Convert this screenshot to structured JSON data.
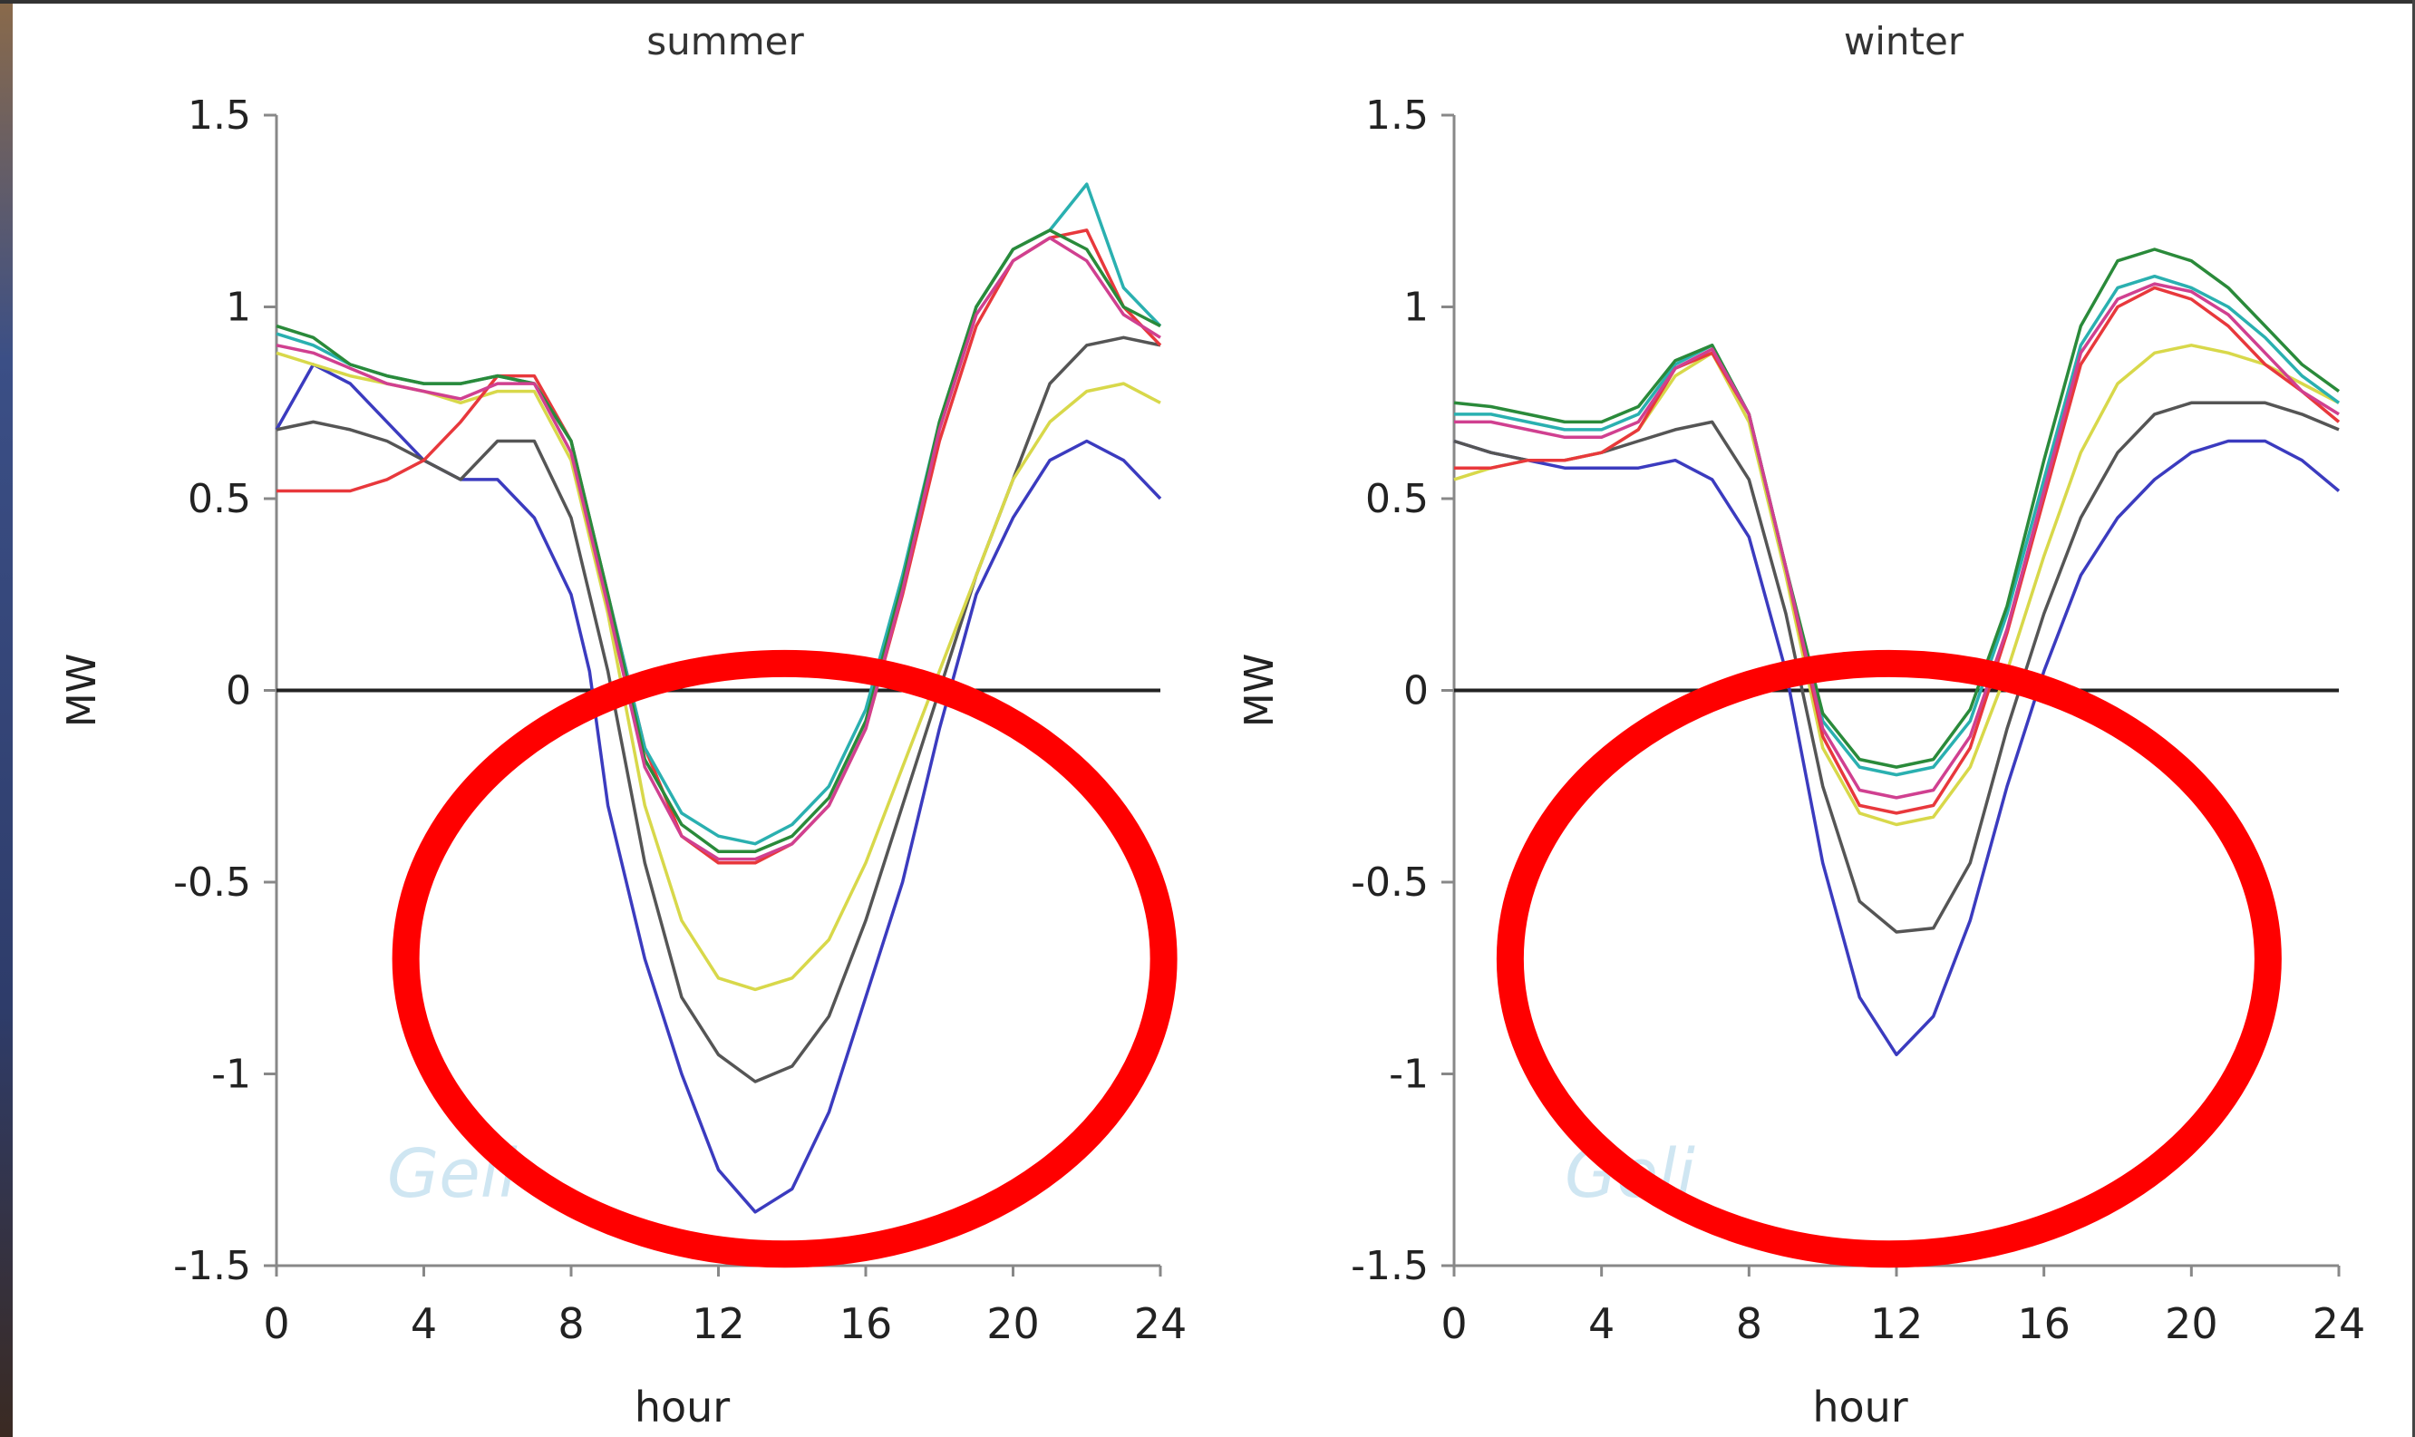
{
  "chart_data": [
    {
      "type": "line",
      "title": "summer",
      "xlabel": "hour",
      "ylabel": "MW",
      "xlim": [
        0,
        24
      ],
      "ylim": [
        -1.5,
        1.5
      ],
      "xticks": [
        "0",
        "4",
        "8",
        "12",
        "16",
        "20",
        "24"
      ],
      "yticks": [
        "1.5",
        "1",
        "0.5",
        "0",
        "-0.5",
        "-1",
        "-1.5"
      ],
      "watermark": "Geli",
      "highlight": {
        "shape": "ellipse",
        "color": "#ff0000",
        "center": [
          13.8,
          -0.7
        ],
        "radius_x_hours": 10.3,
        "radius_y_mw": 0.77
      },
      "series": [
        {
          "color": "#3b3bbf",
          "x": [
            0,
            1,
            2,
            3,
            4,
            5,
            6,
            7,
            8,
            8.5,
            9,
            10,
            11,
            12,
            13,
            14,
            15,
            16,
            17,
            18,
            19,
            20,
            21,
            22,
            23,
            24
          ],
          "y": [
            0.68,
            0.85,
            0.8,
            0.7,
            0.6,
            0.55,
            0.55,
            0.45,
            0.25,
            0.05,
            -0.3,
            -0.7,
            -1.0,
            -1.25,
            -1.36,
            -1.3,
            -1.1,
            -0.8,
            -0.5,
            -0.1,
            0.25,
            0.45,
            0.6,
            0.65,
            0.6,
            0.5
          ]
        },
        {
          "color": "#555555",
          "x": [
            0,
            1,
            2,
            3,
            4,
            5,
            6,
            7,
            8,
            9,
            10,
            11,
            12,
            13,
            14,
            15,
            16,
            17,
            18,
            19,
            20,
            21,
            22,
            23,
            24
          ],
          "y": [
            0.68,
            0.7,
            0.68,
            0.65,
            0.6,
            0.55,
            0.65,
            0.65,
            0.45,
            0.05,
            -0.45,
            -0.8,
            -0.95,
            -1.02,
            -0.98,
            -0.85,
            -0.6,
            -0.3,
            0.0,
            0.3,
            0.55,
            0.8,
            0.9,
            0.92,
            0.9
          ]
        },
        {
          "color": "#d8d84a",
          "x": [
            0,
            1,
            2,
            3,
            4,
            5,
            6,
            7,
            8,
            9,
            10,
            11,
            12,
            13,
            14,
            15,
            16,
            17,
            18,
            19,
            20,
            21,
            22,
            23,
            24
          ],
          "y": [
            0.88,
            0.85,
            0.82,
            0.8,
            0.78,
            0.75,
            0.78,
            0.78,
            0.6,
            0.2,
            -0.3,
            -0.6,
            -0.75,
            -0.78,
            -0.75,
            -0.65,
            -0.45,
            -0.2,
            0.05,
            0.3,
            0.55,
            0.7,
            0.78,
            0.8,
            0.75
          ]
        },
        {
          "color": "#e8383c",
          "x": [
            0,
            1,
            2,
            3,
            4,
            5,
            6,
            7,
            8,
            9,
            10,
            11,
            12,
            13,
            14,
            15,
            16,
            17,
            18,
            19,
            20,
            21,
            22,
            23,
            24
          ],
          "y": [
            0.52,
            0.52,
            0.52,
            0.55,
            0.6,
            0.7,
            0.82,
            0.82,
            0.65,
            0.25,
            -0.15,
            -0.38,
            -0.45,
            -0.45,
            -0.4,
            -0.3,
            -0.1,
            0.25,
            0.65,
            0.95,
            1.12,
            1.18,
            1.2,
            1.0,
            0.9
          ]
        },
        {
          "color": "#2ab0b0",
          "x": [
            0,
            1,
            2,
            3,
            4,
            5,
            6,
            7,
            8,
            9,
            10,
            11,
            12,
            13,
            14,
            15,
            16,
            17,
            18,
            19,
            20,
            21,
            22,
            23,
            24
          ],
          "y": [
            0.93,
            0.9,
            0.85,
            0.82,
            0.8,
            0.8,
            0.82,
            0.8,
            0.65,
            0.25,
            -0.15,
            -0.32,
            -0.38,
            -0.4,
            -0.35,
            -0.25,
            -0.05,
            0.3,
            0.7,
            1.0,
            1.15,
            1.2,
            1.32,
            1.05,
            0.95
          ]
        },
        {
          "color": "#2a8a3a",
          "x": [
            0,
            1,
            2,
            3,
            4,
            5,
            6,
            7,
            8,
            9,
            10,
            11,
            12,
            13,
            14,
            15,
            16,
            17,
            18,
            19,
            20,
            21,
            22,
            23,
            24
          ],
          "y": [
            0.95,
            0.92,
            0.85,
            0.82,
            0.8,
            0.8,
            0.82,
            0.8,
            0.65,
            0.25,
            -0.18,
            -0.35,
            -0.42,
            -0.42,
            -0.38,
            -0.28,
            -0.08,
            0.28,
            0.7,
            1.0,
            1.15,
            1.2,
            1.15,
            1.0,
            0.95
          ]
        },
        {
          "color": "#d04090",
          "x": [
            0,
            1,
            2,
            3,
            4,
            5,
            6,
            7,
            8,
            9,
            10,
            11,
            12,
            13,
            14,
            15,
            16,
            17,
            18,
            19,
            20,
            21,
            22,
            23,
            24
          ],
          "y": [
            0.9,
            0.88,
            0.84,
            0.8,
            0.78,
            0.76,
            0.8,
            0.8,
            0.62,
            0.22,
            -0.2,
            -0.38,
            -0.44,
            -0.44,
            -0.4,
            -0.3,
            -0.1,
            0.26,
            0.68,
            0.98,
            1.12,
            1.18,
            1.12,
            0.98,
            0.92
          ]
        }
      ]
    },
    {
      "type": "line",
      "title": "winter",
      "xlabel": "hour",
      "ylabel": "MW",
      "xlim": [
        0,
        24
      ],
      "ylim": [
        -1.5,
        1.5
      ],
      "xticks": [
        "0",
        "4",
        "8",
        "12",
        "16",
        "20",
        "24"
      ],
      "yticks": [
        "1.5",
        "1",
        "0.5",
        "0",
        "-0.5",
        "-1",
        "-1.5"
      ],
      "watermark": "Geli",
      "highlight": {
        "shape": "ellipse",
        "color": "#ff0000",
        "center": [
          11.8,
          -0.7
        ],
        "radius_x_hours": 10.3,
        "radius_y_mw": 0.77
      },
      "series": [
        {
          "color": "#3b3bbf",
          "x": [
            0,
            1,
            2,
            3,
            4,
            5,
            6,
            7,
            8,
            9,
            10,
            11,
            12,
            13,
            14,
            15,
            16,
            17,
            18,
            19,
            20,
            21,
            22,
            23,
            24
          ],
          "y": [
            0.65,
            0.62,
            0.6,
            0.58,
            0.58,
            0.58,
            0.6,
            0.55,
            0.4,
            0.05,
            -0.45,
            -0.8,
            -0.95,
            -0.85,
            -0.6,
            -0.25,
            0.05,
            0.3,
            0.45,
            0.55,
            0.62,
            0.65,
            0.65,
            0.6,
            0.52
          ]
        },
        {
          "color": "#555555",
          "x": [
            0,
            1,
            2,
            3,
            4,
            5,
            6,
            7,
            8,
            9,
            10,
            11,
            12,
            13,
            14,
            15,
            16,
            17,
            18,
            19,
            20,
            21,
            22,
            23,
            24
          ],
          "y": [
            0.65,
            0.62,
            0.6,
            0.6,
            0.62,
            0.65,
            0.68,
            0.7,
            0.55,
            0.2,
            -0.25,
            -0.55,
            -0.63,
            -0.62,
            -0.45,
            -0.1,
            0.2,
            0.45,
            0.62,
            0.72,
            0.75,
            0.75,
            0.75,
            0.72,
            0.68
          ]
        },
        {
          "color": "#d8d84a",
          "x": [
            0,
            1,
            2,
            3,
            4,
            5,
            6,
            7,
            8,
            9,
            10,
            11,
            12,
            13,
            14,
            15,
            16,
            17,
            18,
            19,
            20,
            21,
            22,
            23,
            24
          ],
          "y": [
            0.55,
            0.58,
            0.6,
            0.6,
            0.62,
            0.68,
            0.82,
            0.88,
            0.7,
            0.3,
            -0.15,
            -0.32,
            -0.35,
            -0.33,
            -0.2,
            0.05,
            0.35,
            0.62,
            0.8,
            0.88,
            0.9,
            0.88,
            0.85,
            0.8,
            0.75
          ]
        },
        {
          "color": "#e8383c",
          "x": [
            0,
            1,
            2,
            3,
            4,
            5,
            6,
            7,
            8,
            9,
            10,
            11,
            12,
            13,
            14,
            15,
            16,
            17,
            18,
            19,
            20,
            21,
            22,
            23,
            24
          ],
          "y": [
            0.58,
            0.58,
            0.6,
            0.6,
            0.62,
            0.68,
            0.84,
            0.88,
            0.72,
            0.32,
            -0.12,
            -0.3,
            -0.32,
            -0.3,
            -0.15,
            0.15,
            0.5,
            0.85,
            1.0,
            1.05,
            1.02,
            0.95,
            0.85,
            0.78,
            0.7
          ]
        },
        {
          "color": "#2ab0b0",
          "x": [
            0,
            1,
            2,
            3,
            4,
            5,
            6,
            7,
            8,
            9,
            10,
            11,
            12,
            13,
            14,
            15,
            16,
            17,
            18,
            19,
            20,
            21,
            22,
            23,
            24
          ],
          "y": [
            0.72,
            0.72,
            0.7,
            0.68,
            0.68,
            0.72,
            0.85,
            0.9,
            0.72,
            0.32,
            -0.08,
            -0.2,
            -0.22,
            -0.2,
            -0.08,
            0.2,
            0.55,
            0.9,
            1.05,
            1.08,
            1.05,
            1.0,
            0.92,
            0.82,
            0.75
          ]
        },
        {
          "color": "#2a8a3a",
          "x": [
            0,
            1,
            2,
            3,
            4,
            5,
            6,
            7,
            8,
            9,
            10,
            11,
            12,
            13,
            14,
            15,
            16,
            17,
            18,
            19,
            20,
            21,
            22,
            23,
            24
          ],
          "y": [
            0.75,
            0.74,
            0.72,
            0.7,
            0.7,
            0.74,
            0.86,
            0.9,
            0.72,
            0.32,
            -0.06,
            -0.18,
            -0.2,
            -0.18,
            -0.05,
            0.22,
            0.6,
            0.95,
            1.12,
            1.15,
            1.12,
            1.05,
            0.95,
            0.85,
            0.78
          ]
        },
        {
          "color": "#d04090",
          "x": [
            0,
            1,
            2,
            3,
            4,
            5,
            6,
            7,
            8,
            9,
            10,
            11,
            12,
            13,
            14,
            15,
            16,
            17,
            18,
            19,
            20,
            21,
            22,
            23,
            24
          ],
          "y": [
            0.7,
            0.7,
            0.68,
            0.66,
            0.66,
            0.7,
            0.84,
            0.89,
            0.72,
            0.32,
            -0.1,
            -0.26,
            -0.28,
            -0.26,
            -0.12,
            0.16,
            0.52,
            0.88,
            1.02,
            1.06,
            1.04,
            0.98,
            0.88,
            0.78,
            0.72
          ]
        }
      ]
    }
  ]
}
